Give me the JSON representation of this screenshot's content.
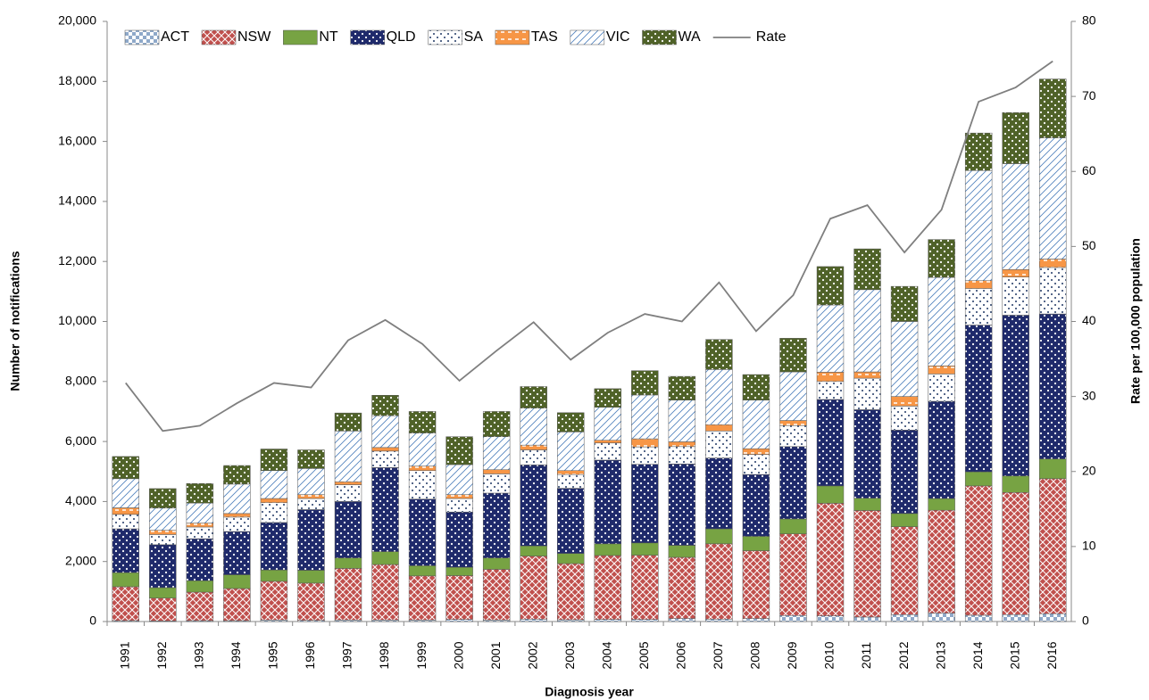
{
  "chart_data": {
    "type": "bar",
    "stacked": true,
    "x_label": "Diagnosis year",
    "y_label": "Number of notifications",
    "y2_label": "Rate per 100,000 population",
    "categories": [
      "1991",
      "1992",
      "1993",
      "1994",
      "1995",
      "1996",
      "1997",
      "1998",
      "1999",
      "2000",
      "2001",
      "2002",
      "2003",
      "2004",
      "2005",
      "2006",
      "2007",
      "2008",
      "2009",
      "2010",
      "2011",
      "2012",
      "2013",
      "2014",
      "2015",
      "2016"
    ],
    "ylim": [
      0,
      20000
    ],
    "yticks": [
      0,
      {
        "value": 2000,
        "label": "2,000"
      },
      {
        "value": 4000,
        "label": "4,000"
      },
      {
        "value": 6000,
        "label": "6,000"
      },
      {
        "value": 8000,
        "label": "8,000"
      },
      {
        "value": 10000,
        "label": "10,000"
      },
      {
        "value": 12000,
        "label": "12,000"
      },
      {
        "value": 14000,
        "label": "14,000"
      },
      {
        "value": 16000,
        "label": "16,000"
      },
      {
        "value": 18000,
        "label": "18,000"
      },
      {
        "value": 20000,
        "label": "20,000"
      }
    ],
    "y2lim": [
      0,
      80
    ],
    "y2ticks": [
      0,
      10,
      20,
      30,
      40,
      50,
      60,
      70,
      80
    ],
    "series": [
      {
        "name": "ACT",
        "color": "#8fa9c9",
        "pattern": "checker",
        "values": [
          30,
          20,
          30,
          30,
          50,
          40,
          50,
          50,
          50,
          70,
          50,
          80,
          60,
          70,
          70,
          100,
          80,
          100,
          200,
          190,
          150,
          230,
          280,
          210,
          230,
          260
        ]
      },
      {
        "name": "NSW",
        "color": "#c0504d",
        "pattern": "crosshatch",
        "values": [
          1130,
          760,
          950,
          1070,
          1290,
          1240,
          1720,
          1850,
          1470,
          1460,
          1690,
          2100,
          1870,
          2130,
          2140,
          2040,
          2510,
          2260,
          2720,
          3750,
          3550,
          2930,
          3430,
          4310,
          4070,
          4500
        ]
      },
      {
        "name": "NT",
        "color": "#77a343",
        "pattern": "solid",
        "values": [
          470,
          350,
          380,
          460,
          380,
          430,
          350,
          430,
          340,
          280,
          380,
          340,
          340,
          390,
          410,
          400,
          500,
          480,
          500,
          580,
          410,
          440,
          390,
          470,
          550,
          660
        ]
      },
      {
        "name": "QLD",
        "color": "#1f2a6b",
        "pattern": "dots",
        "values": [
          1460,
          1430,
          1400,
          1440,
          1580,
          2020,
          1880,
          2800,
          2220,
          1840,
          2160,
          2700,
          2170,
          2790,
          2620,
          2710,
          2360,
          2060,
          2410,
          2880,
          2950,
          2780,
          3240,
          4890,
          5360,
          4830
        ]
      },
      {
        "name": "SA",
        "color": "#1f3864",
        "pattern": "light-dots",
        "values": [
          480,
          340,
          390,
          480,
          660,
          370,
          560,
          550,
          950,
          450,
          640,
          500,
          460,
          570,
          580,
          580,
          900,
          670,
          700,
          600,
          1050,
          800,
          910,
          1220,
          1270,
          1550
        ]
      },
      {
        "name": "TAS",
        "color": "#f79646",
        "pattern": "dash",
        "values": [
          220,
          140,
          130,
          120,
          140,
          130,
          100,
          120,
          150,
          130,
          140,
          160,
          130,
          90,
          270,
          160,
          210,
          190,
          170,
          310,
          210,
          320,
          270,
          260,
          250,
          280
        ]
      },
      {
        "name": "VIC",
        "color": "#4f81bd",
        "pattern": "hatch",
        "values": [
          970,
          740,
          670,
          980,
          930,
          870,
          1690,
          1060,
          1100,
          1000,
          1100,
          1230,
          1290,
          1100,
          1460,
          1390,
          1840,
          1620,
          1620,
          2240,
          2740,
          2500,
          2950,
          3670,
          3530,
          4040
        ]
      },
      {
        "name": "WA",
        "color": "#4f6228",
        "pattern": "dots",
        "values": [
          740,
          650,
          650,
          620,
          720,
          620,
          600,
          680,
          720,
          930,
          840,
          720,
          640,
          620,
          810,
          790,
          1000,
          850,
          1120,
          1280,
          1360,
          1170,
          1260,
          1250,
          1700,
          1960
        ]
      },
      {
        "name": "Rate",
        "color": "#7f7f7f",
        "type": "line",
        "axis": "y2",
        "values": [
          31.8,
          25.4,
          26.1,
          29.1,
          31.8,
          31.2,
          37.5,
          40.2,
          37.0,
          32.1,
          36.1,
          39.9,
          34.9,
          38.5,
          41.0,
          40.0,
          45.2,
          38.7,
          43.5,
          53.7,
          55.5,
          49.2,
          54.9,
          69.3,
          71.2,
          74.7
        ]
      }
    ]
  }
}
